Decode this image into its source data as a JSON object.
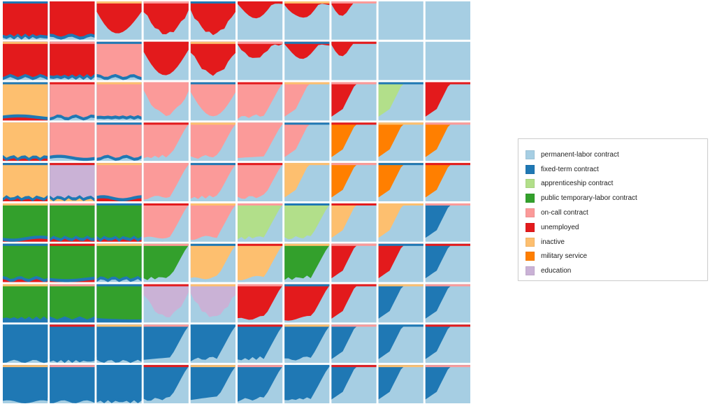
{
  "chart_data": {
    "type": "area",
    "description_units": "state distribution (share of individuals) over time, per grid cell",
    "grid": {
      "rows": 10,
      "cols": 10
    },
    "states": [
      {
        "name": "permanent-labor contract",
        "color": "#a6cee3"
      },
      {
        "name": "fixed-term contract",
        "color": "#1f78b4"
      },
      {
        "name": "apprenticeship contract",
        "color": "#b2df8a"
      },
      {
        "name": "public temporary-labor contract",
        "color": "#33a02c"
      },
      {
        "name": "on-call contract",
        "color": "#fb9a99"
      },
      {
        "name": "unemployed",
        "color": "#e31a1c"
      },
      {
        "name": "inactive",
        "color": "#fdbf6f"
      },
      {
        "name": "military service",
        "color": "#ff7f00"
      },
      {
        "name": "education",
        "color": "#cab2d6"
      }
    ],
    "cells": [
      [
        {
          "main": "unemployed",
          "base": "permanent-labor contract",
          "pattern": "full"
        },
        {
          "main": "unemployed",
          "base": "permanent-labor contract",
          "pattern": "full"
        },
        {
          "main": "unemployed",
          "base": "permanent-labor contract",
          "pattern": "valley"
        },
        {
          "main": "unemployed",
          "base": "permanent-labor contract",
          "pattern": "valley"
        },
        {
          "main": "unemployed",
          "base": "permanent-labor contract",
          "pattern": "valley"
        },
        {
          "main": "unemployed",
          "base": "permanent-labor contract",
          "pattern": "valley-small"
        },
        {
          "main": "unemployed",
          "base": "permanent-labor contract",
          "pattern": "valley-small"
        },
        {
          "main": "unemployed",
          "base": "permanent-labor contract",
          "pattern": "tiny"
        },
        {
          "main": "unemployed",
          "base": "permanent-labor contract",
          "pattern": "empty"
        },
        {
          "main": "unemployed",
          "base": "permanent-labor contract",
          "pattern": "empty"
        }
      ],
      [
        {
          "main": "unemployed",
          "base": "permanent-labor contract",
          "pattern": "full"
        },
        {
          "main": "unemployed",
          "base": "permanent-labor contract",
          "pattern": "full"
        },
        {
          "main": "on-call contract",
          "base": "permanent-labor contract",
          "pattern": "full"
        },
        {
          "main": "unemployed",
          "base": "permanent-labor contract",
          "pattern": "valley"
        },
        {
          "main": "unemployed",
          "base": "permanent-labor contract",
          "pattern": "valley"
        },
        {
          "main": "unemployed",
          "base": "permanent-labor contract",
          "pattern": "valley-small"
        },
        {
          "main": "unemployed",
          "base": "permanent-labor contract",
          "pattern": "valley-small"
        },
        {
          "main": "unemployed",
          "base": "permanent-labor contract",
          "pattern": "tiny"
        },
        {
          "main": "unemployed",
          "base": "permanent-labor contract",
          "pattern": "empty"
        },
        {
          "main": "unemployed",
          "base": "permanent-labor contract",
          "pattern": "empty"
        }
      ],
      [
        {
          "main": "inactive",
          "base": "unemployed",
          "pattern": "full"
        },
        {
          "main": "on-call contract",
          "base": "permanent-labor contract",
          "pattern": "full"
        },
        {
          "main": "on-call contract",
          "base": "permanent-labor contract",
          "pattern": "full"
        },
        {
          "main": "on-call contract",
          "base": "permanent-labor contract",
          "pattern": "valley"
        },
        {
          "main": "on-call contract",
          "base": "permanent-labor contract",
          "pattern": "valley"
        },
        {
          "main": "on-call contract",
          "base": "permanent-labor contract",
          "pattern": "wedge"
        },
        {
          "main": "on-call contract",
          "base": "permanent-labor contract",
          "pattern": "wedge-small"
        },
        {
          "main": "unemployed",
          "base": "permanent-labor contract",
          "pattern": "wedge-small"
        },
        {
          "main": "apprenticeship contract",
          "base": "permanent-labor contract",
          "pattern": "wedge-small"
        },
        {
          "main": "unemployed",
          "base": "permanent-labor contract",
          "pattern": "wedge-small"
        }
      ],
      [
        {
          "main": "inactive",
          "base": "unemployed",
          "pattern": "full"
        },
        {
          "main": "on-call contract",
          "base": "permanent-labor contract",
          "pattern": "full"
        },
        {
          "main": "on-call contract",
          "base": "permanent-labor contract",
          "pattern": "full"
        },
        {
          "main": "on-call contract",
          "base": "permanent-labor contract",
          "pattern": "wedge"
        },
        {
          "main": "on-call contract",
          "base": "permanent-labor contract",
          "pattern": "wedge"
        },
        {
          "main": "on-call contract",
          "base": "permanent-labor contract",
          "pattern": "wedge"
        },
        {
          "main": "on-call contract",
          "base": "permanent-labor contract",
          "pattern": "wedge-small"
        },
        {
          "main": "military service",
          "base": "permanent-labor contract",
          "pattern": "wedge-small"
        },
        {
          "main": "military service",
          "base": "permanent-labor contract",
          "pattern": "wedge-small"
        },
        {
          "main": "military service",
          "base": "permanent-labor contract",
          "pattern": "wedge-small"
        }
      ],
      [
        {
          "main": "inactive",
          "base": "unemployed",
          "pattern": "full"
        },
        {
          "main": "education",
          "base": "inactive",
          "pattern": "full"
        },
        {
          "main": "on-call contract",
          "base": "unemployed",
          "pattern": "full"
        },
        {
          "main": "on-call contract",
          "base": "permanent-labor contract",
          "pattern": "wedge"
        },
        {
          "main": "on-call contract",
          "base": "permanent-labor contract",
          "pattern": "wedge"
        },
        {
          "main": "on-call contract",
          "base": "permanent-labor contract",
          "pattern": "wedge"
        },
        {
          "main": "inactive",
          "base": "permanent-labor contract",
          "pattern": "wedge-small"
        },
        {
          "main": "military service",
          "base": "permanent-labor contract",
          "pattern": "wedge-small"
        },
        {
          "main": "military service",
          "base": "permanent-labor contract",
          "pattern": "wedge-small"
        },
        {
          "main": "military service",
          "base": "permanent-labor contract",
          "pattern": "wedge-small"
        }
      ],
      [
        {
          "main": "public temporary-labor contract",
          "base": "unemployed",
          "pattern": "full"
        },
        {
          "main": "public temporary-labor contract",
          "base": "unemployed",
          "pattern": "full"
        },
        {
          "main": "public temporary-labor contract",
          "base": "unemployed",
          "pattern": "full"
        },
        {
          "main": "on-call contract",
          "base": "permanent-labor contract",
          "pattern": "wedge"
        },
        {
          "main": "on-call contract",
          "base": "permanent-labor contract",
          "pattern": "wedge"
        },
        {
          "main": "apprenticeship contract",
          "base": "permanent-labor contract",
          "pattern": "wedge"
        },
        {
          "main": "apprenticeship contract",
          "base": "permanent-labor contract",
          "pattern": "wedge"
        },
        {
          "main": "inactive",
          "base": "permanent-labor contract",
          "pattern": "wedge-small"
        },
        {
          "main": "inactive",
          "base": "permanent-labor contract",
          "pattern": "wedge-small"
        },
        {
          "main": "fixed-term contract",
          "base": "permanent-labor contract",
          "pattern": "wedge-small"
        }
      ],
      [
        {
          "main": "public temporary-labor contract",
          "base": "unemployed",
          "pattern": "full"
        },
        {
          "main": "public temporary-labor contract",
          "base": "unemployed",
          "pattern": "full"
        },
        {
          "main": "public temporary-labor contract",
          "base": "permanent-labor contract",
          "pattern": "full"
        },
        {
          "main": "public temporary-labor contract",
          "base": "permanent-labor contract",
          "pattern": "wedge"
        },
        {
          "main": "inactive",
          "base": "permanent-labor contract",
          "pattern": "wedge"
        },
        {
          "main": "inactive",
          "base": "permanent-labor contract",
          "pattern": "wedge"
        },
        {
          "main": "public temporary-labor contract",
          "base": "permanent-labor contract",
          "pattern": "wedge"
        },
        {
          "main": "unemployed",
          "base": "permanent-labor contract",
          "pattern": "wedge-small"
        },
        {
          "main": "unemployed",
          "base": "permanent-labor contract",
          "pattern": "wedge-small"
        },
        {
          "main": "fixed-term contract",
          "base": "permanent-labor contract",
          "pattern": "wedge-small"
        }
      ],
      [
        {
          "main": "public temporary-labor contract",
          "base": "fixed-term contract",
          "pattern": "full"
        },
        {
          "main": "public temporary-labor contract",
          "base": "fixed-term contract",
          "pattern": "full"
        },
        {
          "main": "public temporary-labor contract",
          "base": "fixed-term contract",
          "pattern": "full"
        },
        {
          "main": "education",
          "base": "permanent-labor contract",
          "pattern": "valley"
        },
        {
          "main": "education",
          "base": "permanent-labor contract",
          "pattern": "valley"
        },
        {
          "main": "unemployed",
          "base": "permanent-labor contract",
          "pattern": "wedge"
        },
        {
          "main": "unemployed",
          "base": "permanent-labor contract",
          "pattern": "wedge"
        },
        {
          "main": "unemployed",
          "base": "permanent-labor contract",
          "pattern": "wedge-small"
        },
        {
          "main": "fixed-term contract",
          "base": "permanent-labor contract",
          "pattern": "wedge-small"
        },
        {
          "main": "fixed-term contract",
          "base": "permanent-labor contract",
          "pattern": "wedge-small"
        }
      ],
      [
        {
          "main": "fixed-term contract",
          "base": "permanent-labor contract",
          "pattern": "full"
        },
        {
          "main": "fixed-term contract",
          "base": "permanent-labor contract",
          "pattern": "full"
        },
        {
          "main": "fixed-term contract",
          "base": "permanent-labor contract",
          "pattern": "full"
        },
        {
          "main": "fixed-term contract",
          "base": "permanent-labor contract",
          "pattern": "wedge"
        },
        {
          "main": "fixed-term contract",
          "base": "permanent-labor contract",
          "pattern": "wedge"
        },
        {
          "main": "fixed-term contract",
          "base": "permanent-labor contract",
          "pattern": "wedge"
        },
        {
          "main": "fixed-term contract",
          "base": "permanent-labor contract",
          "pattern": "wedge"
        },
        {
          "main": "fixed-term contract",
          "base": "permanent-labor contract",
          "pattern": "wedge-small"
        },
        {
          "main": "fixed-term contract",
          "base": "permanent-labor contract",
          "pattern": "wedge-small"
        },
        {
          "main": "fixed-term contract",
          "base": "permanent-labor contract",
          "pattern": "wedge-small"
        }
      ],
      [
        {
          "main": "fixed-term contract",
          "base": "permanent-labor contract",
          "pattern": "full"
        },
        {
          "main": "fixed-term contract",
          "base": "permanent-labor contract",
          "pattern": "full"
        },
        {
          "main": "fixed-term contract",
          "base": "permanent-labor contract",
          "pattern": "full"
        },
        {
          "main": "fixed-term contract",
          "base": "permanent-labor contract",
          "pattern": "wedge"
        },
        {
          "main": "fixed-term contract",
          "base": "permanent-labor contract",
          "pattern": "wedge"
        },
        {
          "main": "fixed-term contract",
          "base": "permanent-labor contract",
          "pattern": "wedge"
        },
        {
          "main": "fixed-term contract",
          "base": "permanent-labor contract",
          "pattern": "wedge"
        },
        {
          "main": "fixed-term contract",
          "base": "permanent-labor contract",
          "pattern": "wedge-small"
        },
        {
          "main": "fixed-term contract",
          "base": "permanent-labor contract",
          "pattern": "wedge-small"
        },
        {
          "main": "fixed-term contract",
          "base": "permanent-labor contract",
          "pattern": "wedge-small"
        }
      ]
    ],
    "legend_position": "right"
  }
}
